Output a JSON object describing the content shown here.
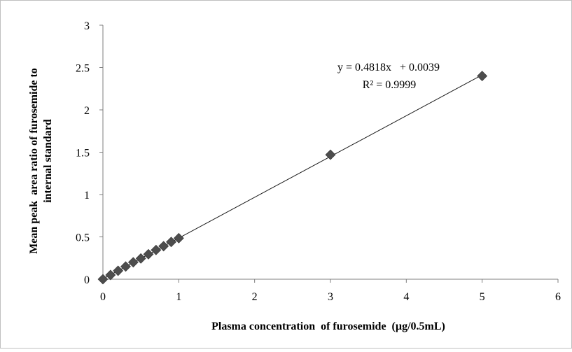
{
  "chart_data": {
    "type": "scatter",
    "title": "",
    "xlabel": "Plasma concentration  of furosemide  (µg/0.5mL)",
    "ylabel_line1": "Mean peak  area ratio of furosemide to",
    "ylabel_line2": "internal standard",
    "xlim": [
      0,
      6
    ],
    "ylim": [
      0,
      3
    ],
    "xticks": [
      "0",
      "1",
      "2",
      "3",
      "4",
      "5",
      "6"
    ],
    "yticks": [
      "0",
      "0.5",
      "1",
      "1.5",
      "2",
      "2.5",
      "3"
    ],
    "grid": false,
    "legend": "none",
    "marker": "diamond",
    "marker_color": "#4d4d4d",
    "series": [
      {
        "x": [
          0,
          0.1,
          0.2,
          0.3,
          0.4,
          0.5,
          0.6,
          0.7,
          0.8,
          0.9,
          1,
          3,
          5
        ],
        "y": [
          0,
          0.05,
          0.1,
          0.15,
          0.2,
          0.245,
          0.295,
          0.345,
          0.39,
          0.44,
          0.485,
          1.47,
          2.4
        ]
      }
    ],
    "trendline": {
      "type": "linear",
      "slope": 0.4818,
      "intercept": 0.0039,
      "x_range": [
        0,
        5
      ],
      "equation": "y = 0.4818x   + 0.0039",
      "r_squared": "R² = 0.9999"
    }
  }
}
